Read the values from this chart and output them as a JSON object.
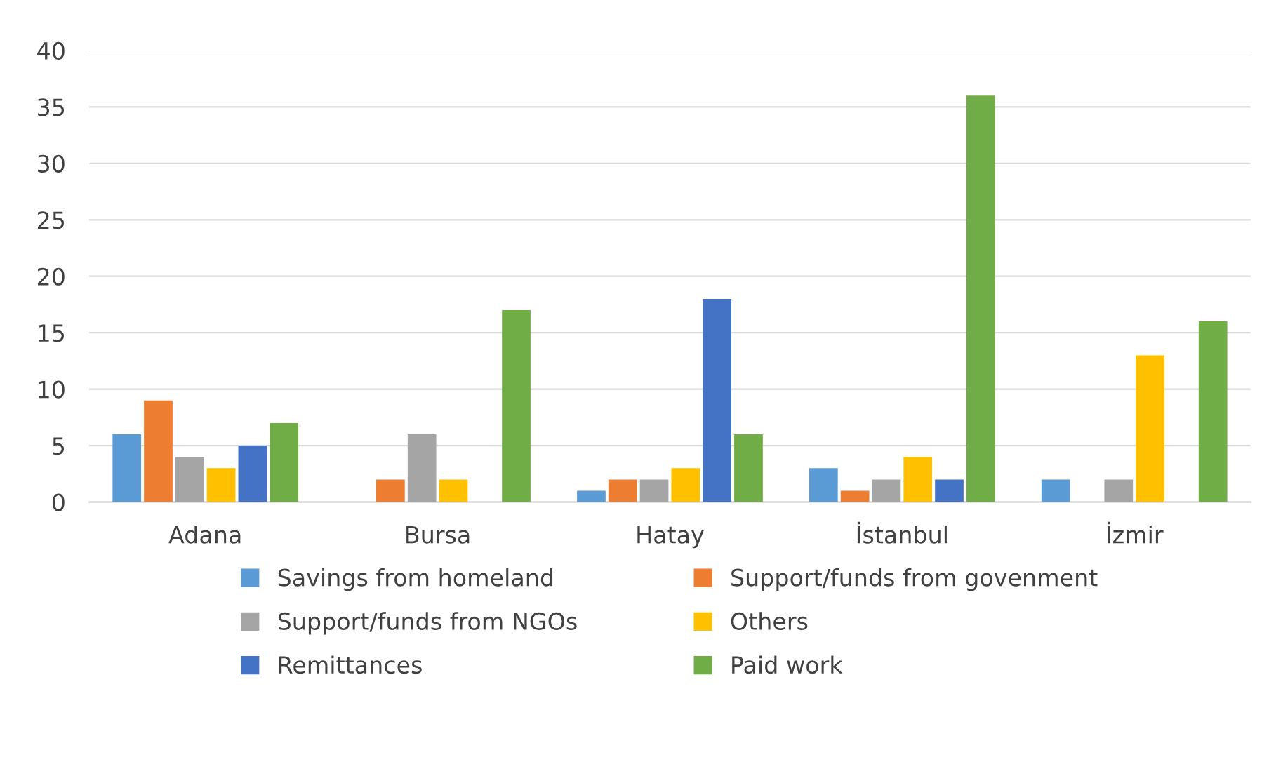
{
  "chart_data": {
    "type": "bar",
    "categories": [
      "Adana",
      "Bursa",
      "Hatay",
      "İstanbul",
      "İzmir"
    ],
    "series": [
      {
        "name": "Savings from homeland",
        "color": "#5b9bd5",
        "values": [
          6,
          0,
          1,
          3,
          2
        ]
      },
      {
        "name": "Support/funds from govenment",
        "color": "#ed7d31",
        "values": [
          9,
          2,
          2,
          1,
          0
        ]
      },
      {
        "name": "Support/funds from NGOs",
        "color": "#a5a5a5",
        "values": [
          4,
          6,
          2,
          2,
          2
        ]
      },
      {
        "name": "Others",
        "color": "#ffc000",
        "values": [
          3,
          2,
          3,
          4,
          13
        ]
      },
      {
        "name": "Remittances",
        "color": "#4472c4",
        "values": [
          5,
          0,
          18,
          2,
          0
        ]
      },
      {
        "name": "Paid work",
        "color": "#70ad47",
        "values": [
          7,
          17,
          6,
          36,
          16
        ]
      }
    ],
    "ylim": [
      0,
      40
    ],
    "yticks": [
      0,
      5,
      10,
      15,
      20,
      25,
      30,
      35,
      40
    ],
    "grid": "y",
    "legend": "bottom"
  }
}
